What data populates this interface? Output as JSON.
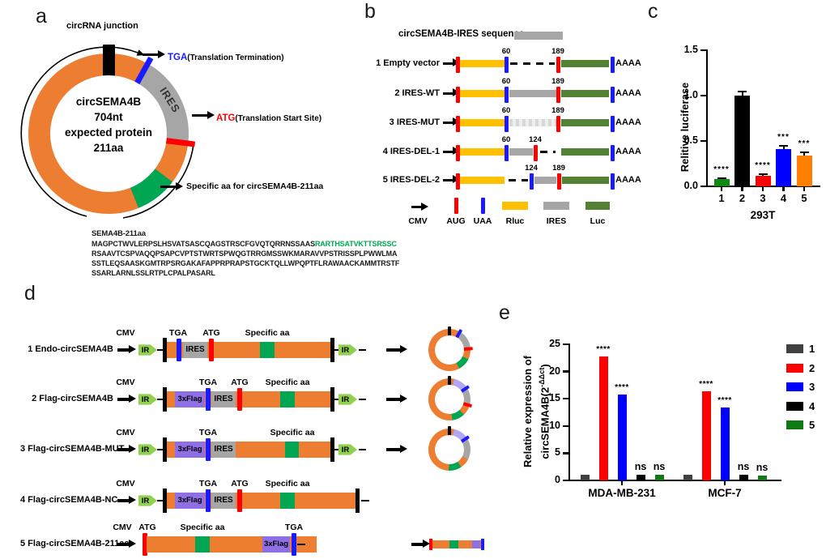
{
  "panel_labels": {
    "a": "a",
    "b": "b",
    "c": "c",
    "d": "d",
    "e": "e"
  },
  "colors": {
    "orange": "#ED7D31",
    "yellow": "#FFC000",
    "gray": "#A6A6A6",
    "luc_green": "#548235",
    "green": "#00A651",
    "red": "#FF0000",
    "blue": "#1a1aff",
    "purple": "#8E6FE6",
    "purple_light": "#B3A6F2",
    "ir_green": "#92D050"
  },
  "panel_a": {
    "junction_label": "circRNA junction",
    "ires_label": "IRES",
    "tga_label": "TGA",
    "tga_desc": "(Translation Termination)",
    "atg_label": "ATG",
    "atg_desc": "(Translation Start Site)",
    "specific_label": "Specific aa for circSEMA4B-211aa",
    "center_line1": "circSEMA4B",
    "center_line2": "704nt",
    "center_line3": "expected protein",
    "center_line4": "211aa",
    "sequence_title": "SEMA4B-211aa",
    "seq_line1_black": "MAGPCTWVLERPSLHSVATSASCQAGSTRSCFGVQTQRRNSSAAS",
    "seq_line1_green": "RARTHSATVKTTSRSSC",
    "seq_line2": "RSAAVTCSPVAQQPSAPCVPTSTWRTSPWQGTRRGMSSWKMARAVVPSTRISSPLPWWLMA",
    "seq_line3": "SSTLEQSAASKGMTRPSRGAKAFAPPRPRAPSTGCKTQLLWPQPTFLRAWAACKAMMTRSTF",
    "seq_line4": "SSARLARNLSSLRTPLCPALPASARL"
  },
  "panel_b": {
    "title": "circSEMA4B-IRES sequence",
    "rows": [
      {
        "name": "1 Empty vector",
        "left_num": "60",
        "right_num": "189",
        "tail": "AAAA"
      },
      {
        "name": "2 IRES-WT",
        "left_num": "60",
        "right_num": "189",
        "tail": "AAAA"
      },
      {
        "name": "3 IRES-MUT",
        "left_num": "60",
        "right_num": "189",
        "tail": "AAAA"
      },
      {
        "name": "4 IRES-DEL-1",
        "left_num": "60",
        "right_num": "124",
        "tail": "AAAA"
      },
      {
        "name": "5 IRES-DEL-2",
        "left_num": "124",
        "right_num": "189",
        "tail": "AAAA"
      }
    ],
    "legend": {
      "cmv": "CMV",
      "aug": "AUG",
      "uaa": "UAA",
      "rluc": "Rluc",
      "ires": "IRES",
      "luc": "Luc"
    }
  },
  "panel_d": {
    "rows": [
      {
        "name": "1 Endo-circSEMA4B",
        "cmv": "CMV",
        "tga": "TGA",
        "atg": "ATG",
        "specific": "Specific aa",
        "ires": "IRES",
        "ir_left": "IR",
        "ir_right": "IR"
      },
      {
        "name": "2 Flag-circSEMA4B",
        "cmv": "CMV",
        "flag": "3xFlag",
        "tga": "TGA",
        "atg": "ATG",
        "specific": "Specific aa",
        "ires": "IRES",
        "ir_left": "IR",
        "ir_right": "IR"
      },
      {
        "name": "3 Flag-circSEMA4B-MUT",
        "cmv": "CMV",
        "flag": "3xFlag",
        "tga": "TGA",
        "specific": "Specific aa",
        "ires": "IRES",
        "ir_left": "IR",
        "ir_right": "IR"
      },
      {
        "name": "4 Flag-circSEMA4B-NC",
        "cmv": "CMV",
        "flag": "3xFlag",
        "tga": "TGA",
        "atg": "ATG",
        "specific": "Specific aa",
        "ires": "IRES",
        "ir_left": "IR"
      },
      {
        "name": "5 Flag-circSEMA4B-211aa",
        "cmv": "CMV",
        "atg": "ATG",
        "specific": "Specific aa",
        "flag": "3xFlag",
        "tga": "TGA"
      }
    ]
  },
  "chart_data": [
    {
      "id": "c",
      "type": "bar",
      "title": "",
      "xlabel": "293T",
      "ylabel": "Relitive luciferase",
      "categories": [
        "1",
        "2",
        "3",
        "4",
        "5"
      ],
      "values": [
        0.08,
        1.0,
        0.12,
        0.41,
        0.34
      ],
      "errors": [
        0.015,
        0.05,
        0.02,
        0.045,
        0.04
      ],
      "sig": [
        "****",
        "",
        "****",
        "***",
        "***"
      ],
      "colors": [
        "#0c8a12",
        "#000000",
        "#ff0000",
        "#0000ff",
        "#ff8000"
      ],
      "ylim": [
        0,
        1.5
      ],
      "yticks": [
        "0.0",
        "0.5",
        "1.0",
        "1.5"
      ],
      "grid": false,
      "legend_position": "none"
    },
    {
      "id": "e",
      "type": "grouped-bar",
      "ylabel_line1": "Relative expression of",
      "ylabel_line2_pre": "circSEMA4B(2",
      "ylabel_sup": "-ΔΔct",
      "ylabel_line2_post": ")",
      "categories": [
        "MDA-MB-231",
        "MCF-7"
      ],
      "series": [
        {
          "name": "1",
          "color": "#404040",
          "values": [
            1.0,
            1.0
          ],
          "sig": [
            "",
            ""
          ]
        },
        {
          "name": "2",
          "color": "#ff0000",
          "values": [
            22.8,
            16.4
          ],
          "sig": [
            "****",
            "****"
          ]
        },
        {
          "name": "3",
          "color": "#0000ff",
          "values": [
            15.8,
            13.4
          ],
          "sig": [
            "****",
            "****"
          ]
        },
        {
          "name": "4",
          "color": "#000000",
          "values": [
            1.1,
            1.0
          ],
          "sig": [
            "ns",
            "ns"
          ]
        },
        {
          "name": "5",
          "color": "#0e7b12",
          "values": [
            1.1,
            0.9
          ],
          "sig": [
            "ns",
            "ns"
          ]
        }
      ],
      "ylim": [
        0,
        25
      ],
      "yticks": [
        "0",
        "5",
        "10",
        "15",
        "20",
        "25"
      ],
      "grid": false,
      "legend_position": "right"
    }
  ]
}
